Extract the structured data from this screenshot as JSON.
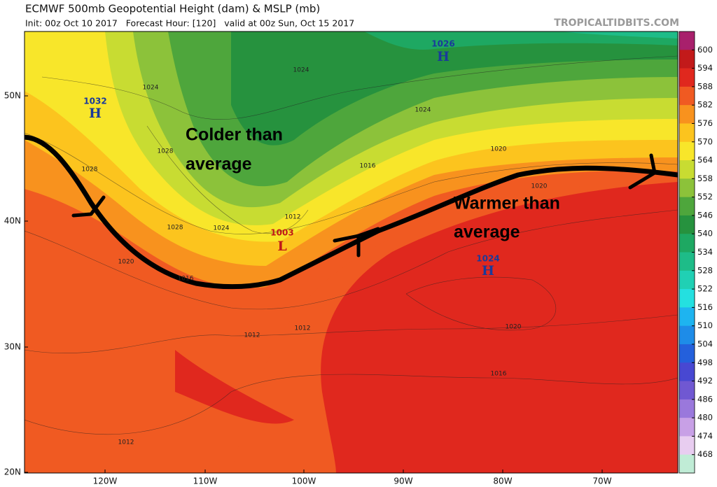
{
  "header": {
    "title": "ECMWF 500mb Geopotential Height (dam) & MSLP (mb)",
    "subtitle": "Init: 00z Oct 10 2017   Forecast Hour: [120]   valid at 00z Sun, Oct 15 2017",
    "source": "TROPICALTIDBITS.COM"
  },
  "map": {
    "lat_labels": [
      "50N",
      "40N",
      "30N",
      "20N"
    ],
    "lon_labels": [
      "120W",
      "110W",
      "100W",
      "90W",
      "80W",
      "70W"
    ],
    "pressure_centers": [
      {
        "value": "1032",
        "symbol": "H"
      },
      {
        "value": "1026",
        "symbol": "H"
      },
      {
        "value": "1024",
        "symbol": "H"
      },
      {
        "value": "1003",
        "symbol": "L"
      }
    ],
    "contour_labels": [
      "1024",
      "1024",
      "1028",
      "1028",
      "1016",
      "1020",
      "1024",
      "1020",
      "1012",
      "1024",
      "1028",
      "1020",
      "1016",
      "1012",
      "1012",
      "1020",
      "1016",
      "1012"
    ],
    "annotations": [
      {
        "line1": "Colder than",
        "line2": "average"
      },
      {
        "line1": "Warmer than",
        "line2": "average"
      }
    ]
  },
  "colorbar": {
    "labels": [
      600,
      594,
      588,
      582,
      576,
      570,
      564,
      558,
      552,
      546,
      540,
      534,
      528,
      522,
      516,
      510,
      504,
      498,
      492,
      486,
      480,
      474,
      468
    ],
    "colors": [
      "#a8206c",
      "#c21a1a",
      "#e0281e",
      "#f05a22",
      "#f8921e",
      "#fcc41e",
      "#f8e62a",
      "#c8dc32",
      "#8cc23a",
      "#4ea63c",
      "#26923e",
      "#1ea862",
      "#1ebc88",
      "#20d0b4",
      "#24e0e0",
      "#1eb4f0",
      "#1e8ce8",
      "#2460dc",
      "#4848d2",
      "#7058d2",
      "#9a78dc",
      "#c8a0e6",
      "#e8cdf0",
      "#c0ecd6"
    ]
  }
}
